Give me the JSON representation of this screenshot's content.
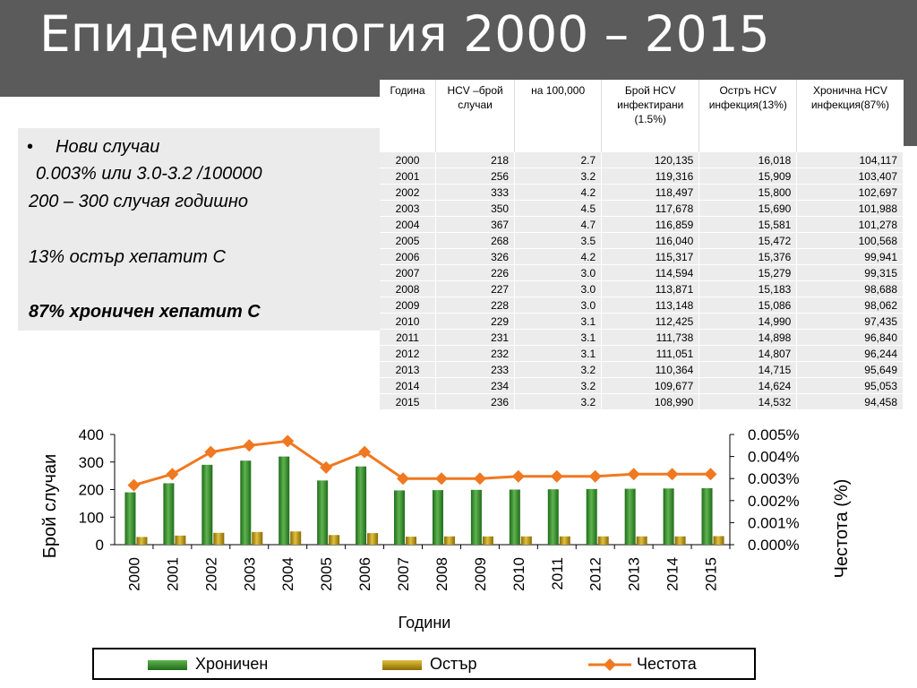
{
  "slide": {
    "title": "Епидемиология 2000 – 2015"
  },
  "left_panel": {
    "bullet": "•",
    "lines": [
      "Нови случаи",
      "0.003% или 3.0-3.2 /100000",
      "200 – 300 случая  годишно",
      "13% остър хепатит С",
      "87% хроничен хепатит С"
    ]
  },
  "table": {
    "headers": [
      "Година",
      "HCV  –брой случаи",
      "на 100,000",
      "Брой HCV инфектирани (1.5%)",
      "Остръ HCV инфекция(13%)",
      "Хронична HCV инфекция(87%)"
    ],
    "rows": [
      [
        "2000",
        "218",
        "2.7",
        "120,135",
        "16,018",
        "104,117"
      ],
      [
        "2001",
        "256",
        "3.2",
        "119,316",
        "15,909",
        "103,407"
      ],
      [
        "2002",
        "333",
        "4.2",
        "118,497",
        "15,800",
        "102,697"
      ],
      [
        "2003",
        "350",
        "4.5",
        "117,678",
        "15,690",
        "101,988"
      ],
      [
        "2004",
        "367",
        "4.7",
        "116,859",
        "15,581",
        "101,278"
      ],
      [
        "2005",
        "268",
        "3.5",
        "116,040",
        "15,472",
        "100,568"
      ],
      [
        "2006",
        "326",
        "4.2",
        "115,317",
        "15,376",
        "99,941"
      ],
      [
        "2007",
        "226",
        "3.0",
        "114,594",
        "15,279",
        "99,315"
      ],
      [
        "2008",
        "227",
        "3.0",
        "113,871",
        "15,183",
        "98,688"
      ],
      [
        "2009",
        "228",
        "3.0",
        "113,148",
        "15,086",
        "98,062"
      ],
      [
        "2010",
        "229",
        "3.1",
        "112,425",
        "14,990",
        "97,435"
      ],
      [
        "2011",
        "231",
        "3.1",
        "111,738",
        "14,898",
        "96,840"
      ],
      [
        "2012",
        "232",
        "3.1",
        "111,051",
        "14,807",
        "96,244"
      ],
      [
        "2013",
        "233",
        "3.2",
        "110,364",
        "14,715",
        "95,649"
      ],
      [
        "2014",
        "234",
        "3.2",
        "109,677",
        "14,624",
        "95,053"
      ],
      [
        "2015",
        "236",
        "3.2",
        "108,990",
        "14,532",
        "94,458"
      ]
    ]
  },
  "chart_data": {
    "type": "bar",
    "categories": [
      "2000",
      "2001",
      "2002",
      "2003",
      "2004",
      "2005",
      "2006",
      "2007",
      "2008",
      "2009",
      "2010",
      "2011",
      "2012",
      "2013",
      "2014",
      "2015"
    ],
    "series": [
      {
        "name": "Хроничен",
        "axis": "left",
        "kind": "bar",
        "color": "#3a8a2e",
        "values": [
          190,
          223,
          290,
          305,
          320,
          233,
          284,
          197,
          198,
          199,
          200,
          201,
          202,
          203,
          204,
          205
        ]
      },
      {
        "name": "Остър",
        "axis": "left",
        "kind": "bar",
        "color": "#b8960a",
        "values": [
          28,
          33,
          43,
          46,
          48,
          35,
          42,
          29,
          30,
          30,
          30,
          30,
          30,
          30,
          30,
          31
        ]
      },
      {
        "name": "Честота",
        "axis": "right",
        "kind": "line",
        "color": "#f07820",
        "values": [
          0.0027,
          0.0032,
          0.0042,
          0.0045,
          0.0047,
          0.0035,
          0.0042,
          0.003,
          0.003,
          0.003,
          0.0031,
          0.0031,
          0.0031,
          0.0032,
          0.0032,
          0.0032
        ]
      }
    ],
    "xlabel": "Години",
    "ylabel": "Брой случаи",
    "ylabel_right": "Честота (%)",
    "ylim": [
      0,
      400
    ],
    "yticks": [
      "0",
      "100",
      "200",
      "300",
      "400"
    ],
    "ylim_right": [
      0,
      0.005
    ],
    "yticks_right": [
      "0.000%",
      "0.001%",
      "0.002%",
      "0.003%",
      "0.004%",
      "0.005%"
    ],
    "legend": "bottom",
    "grid": false
  }
}
